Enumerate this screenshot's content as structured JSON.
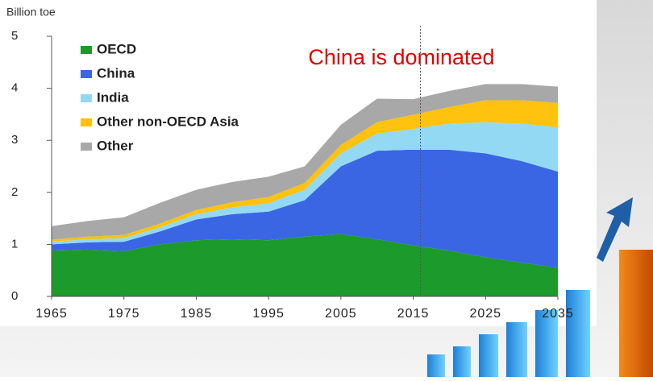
{
  "chart_data": {
    "type": "stacked-area",
    "title": "China is dominated",
    "ylabel": "Billion toe",
    "x": [
      1965,
      1970,
      1975,
      1980,
      1985,
      1990,
      1995,
      2000,
      2005,
      2010,
      2015,
      2020,
      2025,
      2030,
      2035
    ],
    "series": [
      {
        "name": "OECD",
        "color": "#1c9a2c",
        "values": [
          0.88,
          0.9,
          0.87,
          1.0,
          1.08,
          1.1,
          1.08,
          1.15,
          1.2,
          1.1,
          0.98,
          0.88,
          0.75,
          0.65,
          0.55
        ]
      },
      {
        "name": "China",
        "color": "#3a66e4",
        "values": [
          0.12,
          0.14,
          0.18,
          0.25,
          0.4,
          0.48,
          0.55,
          0.7,
          1.3,
          1.7,
          1.84,
          1.94,
          2.0,
          1.95,
          1.85
        ]
      },
      {
        "name": "India",
        "color": "#93d9f4",
        "values": [
          0.05,
          0.06,
          0.07,
          0.08,
          0.1,
          0.13,
          0.16,
          0.2,
          0.25,
          0.33,
          0.4,
          0.5,
          0.6,
          0.72,
          0.85
        ]
      },
      {
        "name": "Other non-OECD Asia",
        "color": "#ffc20e",
        "values": [
          0.04,
          0.05,
          0.06,
          0.07,
          0.08,
          0.1,
          0.12,
          0.13,
          0.16,
          0.22,
          0.27,
          0.32,
          0.42,
          0.45,
          0.47
        ]
      },
      {
        "name": "Other",
        "color": "#a8a8a8",
        "values": [
          0.26,
          0.3,
          0.34,
          0.4,
          0.39,
          0.39,
          0.39,
          0.32,
          0.39,
          0.45,
          0.3,
          0.31,
          0.31,
          0.31,
          0.31
        ]
      }
    ],
    "xlim": [
      1965,
      2035
    ],
    "xticks": [
      1965,
      1975,
      1985,
      1995,
      2005,
      2015,
      2025,
      2035
    ],
    "ylim": [
      0,
      5
    ],
    "yticks": [
      0,
      1,
      2,
      3,
      4,
      5
    ],
    "divider_x": 2016
  }
}
